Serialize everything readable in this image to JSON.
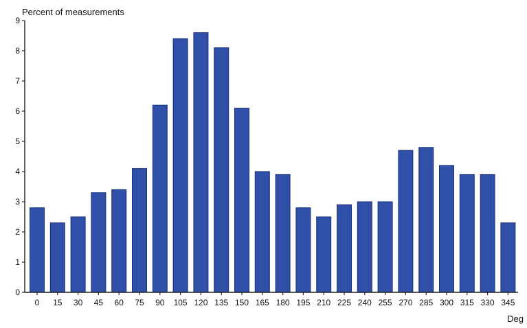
{
  "chart_data": {
    "type": "bar",
    "title": "",
    "ylabel": "Percent of measurements",
    "xlabel": "Deg",
    "categories": [
      "0",
      "15",
      "30",
      "45",
      "60",
      "75",
      "90",
      "105",
      "120",
      "135",
      "150",
      "165",
      "180",
      "195",
      "210",
      "225",
      "240",
      "255",
      "270",
      "285",
      "300",
      "315",
      "330",
      "345"
    ],
    "values": [
      2.8,
      2.3,
      2.5,
      3.3,
      3.4,
      4.1,
      6.2,
      8.4,
      8.6,
      8.1,
      6.1,
      4.0,
      3.9,
      2.8,
      2.5,
      2.9,
      3.0,
      3.0,
      4.7,
      4.8,
      4.2,
      3.9,
      3.9,
      2.3
    ],
    "ylim": [
      0,
      9
    ],
    "yticks": [
      0,
      1,
      2,
      3,
      4,
      5,
      6,
      7,
      8,
      9
    ],
    "grid": false,
    "bar_color": "#2f4fa8",
    "bar_edge_color": "#1a2f78",
    "axis_color": "#222222"
  }
}
